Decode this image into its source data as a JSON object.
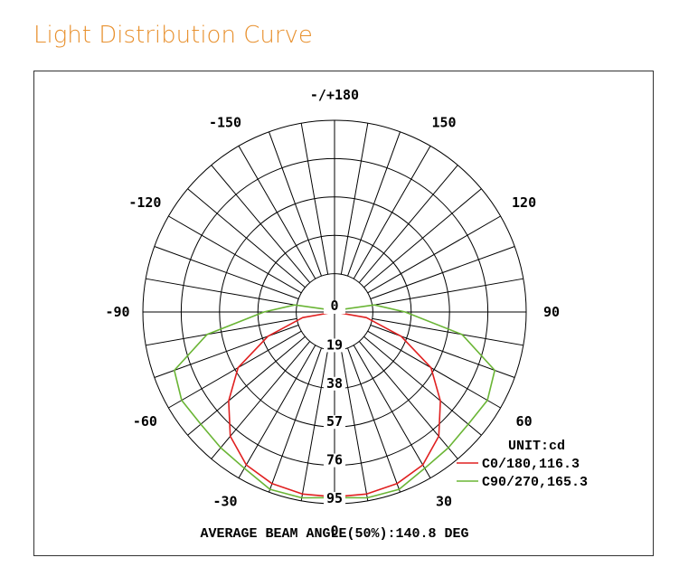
{
  "page": {
    "title": "Light Distribution Curve"
  },
  "chart_data": {
    "type": "polar",
    "angle_labels": [
      {
        "text": "-/+180",
        "angle": 180
      },
      {
        "text": "150",
        "angle": 150
      },
      {
        "text": "-150",
        "angle": -150
      },
      {
        "text": "120",
        "angle": 120
      },
      {
        "text": "-120",
        "angle": -120
      },
      {
        "text": "90",
        "angle": 90
      },
      {
        "text": "-90",
        "angle": -90
      },
      {
        "text": "60",
        "angle": 60
      },
      {
        "text": "-60",
        "angle": -60
      },
      {
        "text": "30",
        "angle": 30
      },
      {
        "text": "-30",
        "angle": -30
      },
      {
        "text": "0",
        "angle": 0
      }
    ],
    "radial_max": 95,
    "radial_ticks": [
      {
        "value": 0,
        "label": "0"
      },
      {
        "value": 19,
        "label": "19"
      },
      {
        "value": 38,
        "label": "38"
      },
      {
        "value": 57,
        "label": "57"
      },
      {
        "value": 76,
        "label": "76"
      },
      {
        "value": 95,
        "label": "95"
      }
    ],
    "angular_step_deg": 10,
    "unit_label": "UNIT:cd",
    "series": [
      {
        "name": "C0/180,116.3",
        "color": "#e02020",
        "points": [
          {
            "angle": 0,
            "value": 91.6
          },
          {
            "angle": 10,
            "value": 91.6
          },
          {
            "angle": 20,
            "value": 90.5
          },
          {
            "angle": 30,
            "value": 87.5
          },
          {
            "angle": 40,
            "value": 80.4
          },
          {
            "angle": 50,
            "value": 68.5
          },
          {
            "angle": 60,
            "value": 55.2
          },
          {
            "angle": 70,
            "value": 35.1
          },
          {
            "angle": 80,
            "value": 16.0
          },
          {
            "angle": 90,
            "value": 0.0
          },
          {
            "angle": -10,
            "value": 91.6
          },
          {
            "angle": -20,
            "value": 90.5
          },
          {
            "angle": -30,
            "value": 87.5
          },
          {
            "angle": -40,
            "value": 80.4
          },
          {
            "angle": -50,
            "value": 68.5
          },
          {
            "angle": -60,
            "value": 55.2
          },
          {
            "angle": -70,
            "value": 35.1
          },
          {
            "angle": -80,
            "value": 16.0
          },
          {
            "angle": -90,
            "value": 0.0
          }
        ]
      },
      {
        "name": "C90/270,165.3",
        "color": "#6ab535",
        "points": [
          {
            "angle": 0,
            "value": 92.0
          },
          {
            "angle": 10,
            "value": 93.5
          },
          {
            "angle": 20,
            "value": 93.5
          },
          {
            "angle": 30,
            "value": 89.4
          },
          {
            "angle": 40,
            "value": 87.8
          },
          {
            "angle": 50,
            "value": 86.5
          },
          {
            "angle": 60,
            "value": 87.5
          },
          {
            "angle": 70,
            "value": 84.5
          },
          {
            "angle": 80,
            "value": 64.2
          },
          {
            "angle": 90,
            "value": 35.0
          },
          {
            "angle": 100,
            "value": 20.0
          },
          {
            "angle": 120,
            "value": 2.0
          },
          {
            "angle": -10,
            "value": 93.5
          },
          {
            "angle": -20,
            "value": 93.5
          },
          {
            "angle": -30,
            "value": 89.4
          },
          {
            "angle": -40,
            "value": 87.8
          },
          {
            "angle": -50,
            "value": 86.5
          },
          {
            "angle": -60,
            "value": 87.5
          },
          {
            "angle": -70,
            "value": 84.5
          },
          {
            "angle": -80,
            "value": 64.2
          },
          {
            "angle": -90,
            "value": 35.0
          },
          {
            "angle": -100,
            "value": 20.0
          },
          {
            "angle": -120,
            "value": 2.0
          }
        ]
      }
    ],
    "footer": "AVERAGE BEAM ANGLE(50%):140.8 DEG"
  }
}
